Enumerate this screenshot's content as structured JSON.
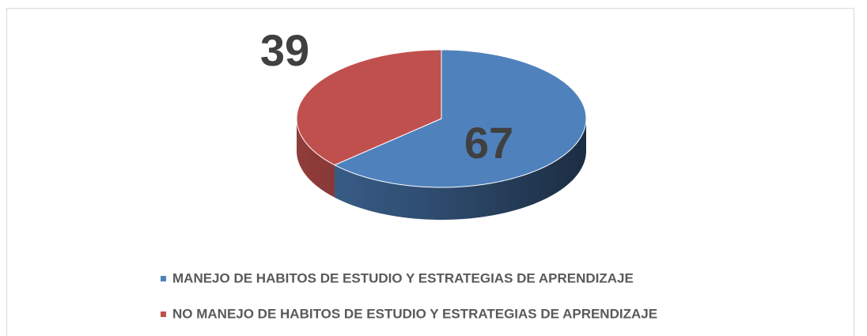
{
  "chart_data": {
    "type": "pie3d",
    "categories": [
      "MANEJO DE HABITOS DE ESTUDIO Y ESTRATEGIAS DE APRENDIZAJE",
      "NO MANEJO DE HABITOS DE ESTUDIO Y ESTRATEGIAS DE APRENDIZAJE"
    ],
    "values": [
      67,
      39
    ],
    "colors": [
      "#4f81bd",
      "#c0504d"
    ],
    "legend": "bottom"
  }
}
